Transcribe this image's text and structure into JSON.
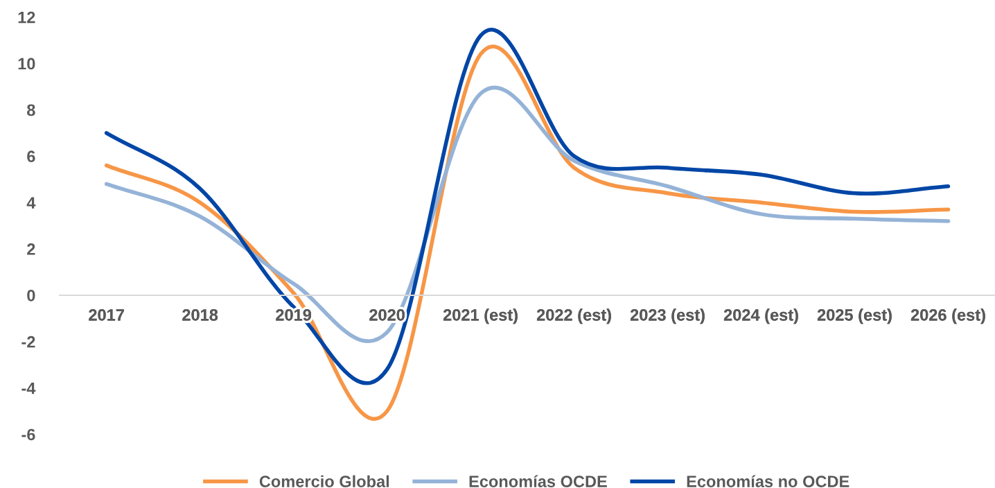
{
  "chart_data": {
    "type": "line",
    "categories": [
      "2017",
      "2018",
      "2019",
      "2020",
      "2021 (est)",
      "2022 (est)",
      "2023 (est)",
      "2024 (est)",
      "2025 (est)",
      "2026 (est)"
    ],
    "series": [
      {
        "name": "Comercio Global",
        "color": "#f79646",
        "values": [
          5.6,
          4.0,
          0.1,
          -5.0,
          10.4,
          5.5,
          4.4,
          4.0,
          3.6,
          3.7
        ]
      },
      {
        "name": "Economías OCDE",
        "color": "#95b3d7",
        "values": [
          4.8,
          3.4,
          0.5,
          -1.6,
          8.7,
          5.8,
          4.7,
          3.5,
          3.3,
          3.2
        ]
      },
      {
        "name": "Economías no OCDE",
        "color": "#0046a6",
        "values": [
          7.0,
          4.6,
          -0.5,
          -3.2,
          11.2,
          6.0,
          5.5,
          5.2,
          4.4,
          4.7
        ]
      }
    ],
    "ylim": [
      -6,
      12
    ],
    "yticks": [
      -6,
      -4,
      -2,
      0,
      2,
      4,
      6,
      8,
      10,
      12
    ],
    "legend": "bottom",
    "grid": false,
    "marker": "none",
    "line_style": "solid"
  }
}
